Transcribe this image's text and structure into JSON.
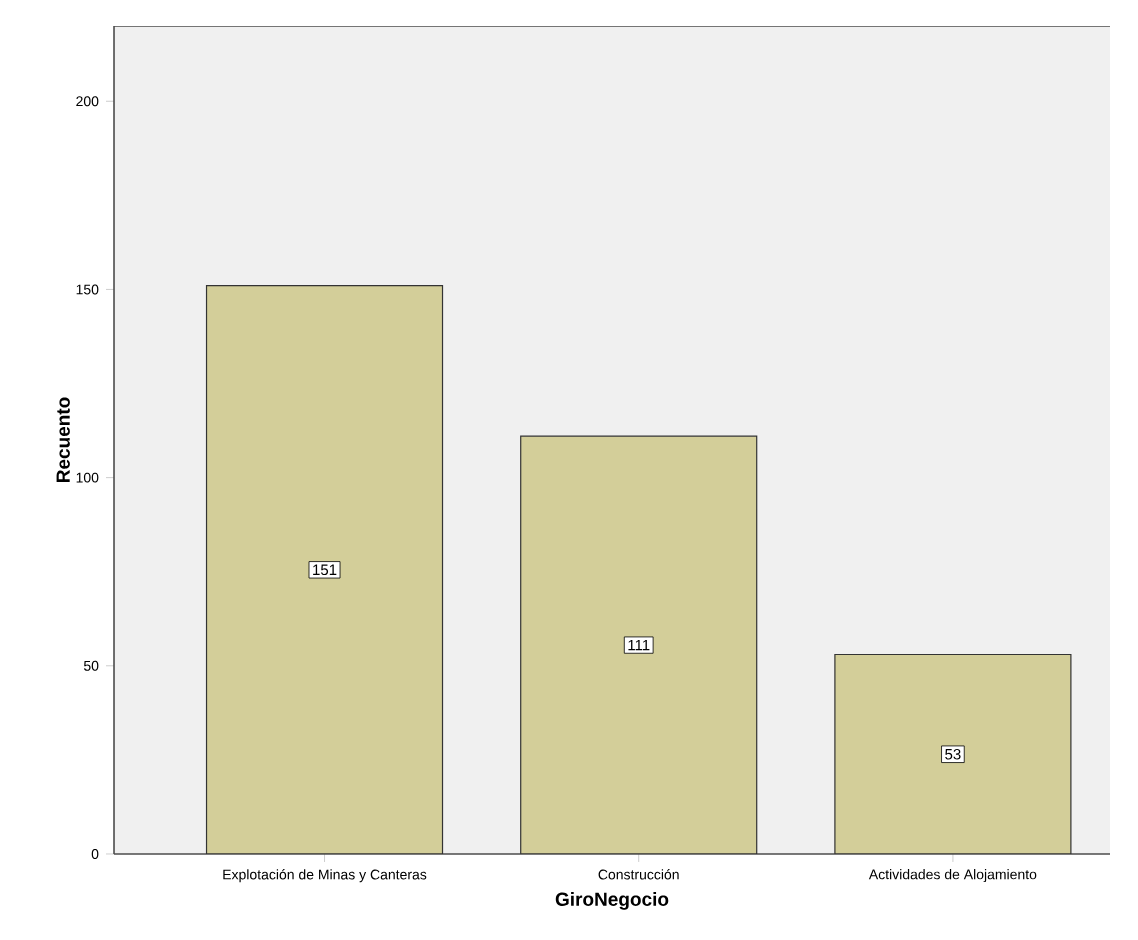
{
  "chart_data": {
    "type": "bar",
    "xlabel": "GiroNegocio",
    "ylabel": "Recuento",
    "categories": [
      "Explotación de Minas y Canteras",
      "Construcción",
      "Actividades de Alojamiento"
    ],
    "values": [
      151,
      111,
      53
    ],
    "color": "#d3ce99",
    "ylim": [
      0,
      220
    ],
    "yticks": [
      0,
      50,
      100,
      150,
      200
    ],
    "grid": false,
    "data_labels": true
  }
}
